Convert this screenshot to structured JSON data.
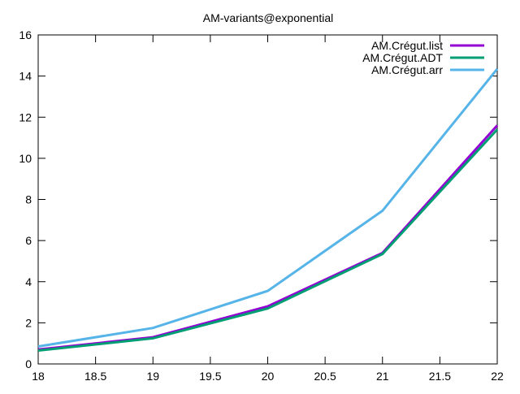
{
  "chart_data": {
    "type": "line",
    "title": "AM-variants@exponential",
    "xlabel": "",
    "ylabel": "",
    "xlim": [
      18,
      22
    ],
    "ylim": [
      0,
      16
    ],
    "xticks": [
      18,
      18.5,
      19,
      19.5,
      20,
      20.5,
      21,
      21.5,
      22
    ],
    "yticks": [
      0,
      2,
      4,
      6,
      8,
      10,
      12,
      14,
      16
    ],
    "grid": false,
    "legend_position": "top-right",
    "series": [
      {
        "name": "AM.Crégut.list",
        "color": "#9400d3",
        "x": [
          18,
          19,
          20,
          21,
          22
        ],
        "y": [
          0.7,
          1.3,
          2.8,
          5.4,
          11.6
        ]
      },
      {
        "name": "AM.Crégut.ADT",
        "color": "#009e73",
        "x": [
          18,
          19,
          20,
          21,
          22
        ],
        "y": [
          0.65,
          1.25,
          2.7,
          5.35,
          11.4
        ]
      },
      {
        "name": "AM.Crégut.arr",
        "color": "#56b4e9",
        "x": [
          18,
          19,
          20,
          21,
          22
        ],
        "y": [
          0.85,
          1.75,
          3.55,
          7.45,
          14.35
        ]
      }
    ]
  }
}
